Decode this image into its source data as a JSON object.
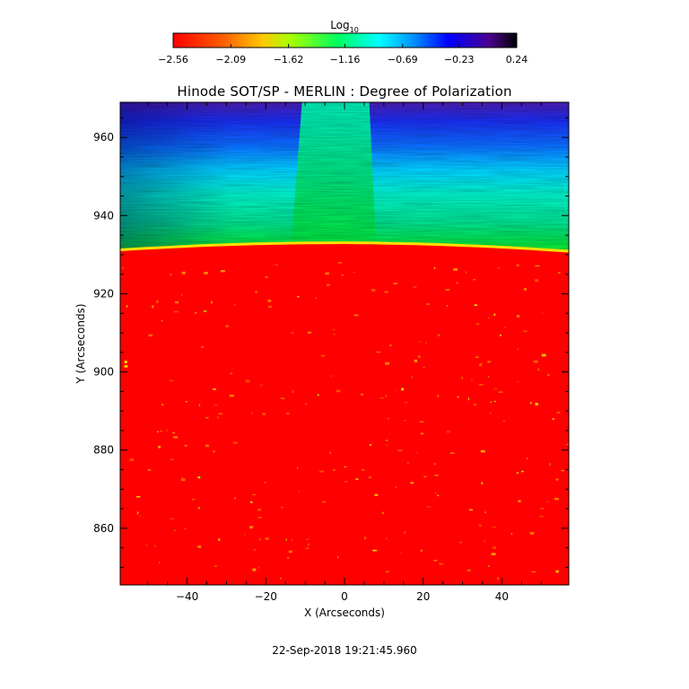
{
  "chart_data": {
    "type": "heatmap",
    "title": "Hinode SOT/SP - MERLIN : Degree of Polarization",
    "xlabel": "X (Arcseconds)",
    "ylabel": "Y (Arcseconds)",
    "xlim": [
      -57,
      57
    ],
    "ylim": [
      845.5,
      969
    ],
    "x_ticks": [
      -40,
      -20,
      0,
      20,
      40
    ],
    "x_tick_labels": [
      "−40",
      "−20",
      "0",
      "20",
      "40"
    ],
    "y_ticks": [
      860,
      880,
      900,
      920,
      940,
      960
    ],
    "y_tick_labels": [
      "860",
      "880",
      "900",
      "920",
      "940",
      "960"
    ],
    "timestamp": "22-Sep-2018 19:21:45.960",
    "colorbar": {
      "label_base": "Log",
      "label_sub": "10",
      "range": [
        -2.56,
        0.24
      ],
      "ticks": [
        -2.56,
        -2.09,
        -1.62,
        -1.16,
        -0.69,
        -0.23,
        0.24
      ],
      "tick_labels": [
        "−2.56",
        "−2.09",
        "−1.62",
        "−1.16",
        "−0.69",
        "−0.23",
        "0.24"
      ],
      "colors": [
        "#ff0000",
        "#ff8000",
        "#ffff00",
        "#00ff00",
        "#00ffff",
        "#0000ff",
        "#000000"
      ]
    },
    "limb_y": 931,
    "grid": false,
    "legend": "colorbar-top"
  }
}
